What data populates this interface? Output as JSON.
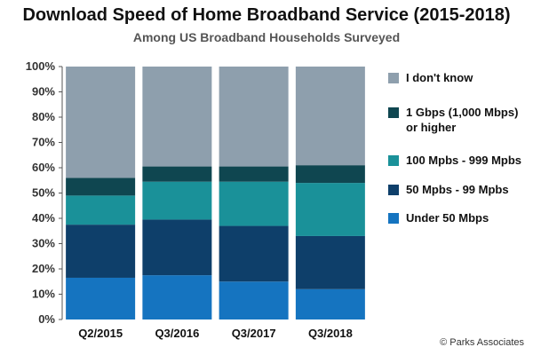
{
  "title": "Download Speed of Home Broadband Service (2015-2018)",
  "subtitle": "Among US Broadband Households Surveyed",
  "credit": "© Parks Associates",
  "chart_data": {
    "type": "bar",
    "stacked": true,
    "categories": [
      "Q2/2015",
      "Q3/2016",
      "Q3/2017",
      "Q3/2018"
    ],
    "series": [
      {
        "name": "Under 50 Mbps",
        "color": "#1574c0",
        "values": [
          16.5,
          17.5,
          15,
          12
        ]
      },
      {
        "name": "50 Mpbs - 99 Mpbs",
        "color": "#0e3f6a",
        "values": [
          21,
          22,
          22,
          21
        ]
      },
      {
        "name": "100 Mpbs - 999 Mpbs",
        "color": "#1a9199",
        "values": [
          11.5,
          15,
          17.5,
          21
        ]
      },
      {
        "name": "1 Gbps (1,000 Mbps) or higher",
        "color": "#0f4650",
        "values": [
          7,
          6,
          6,
          7
        ]
      },
      {
        "name": "I don't know",
        "color": "#8e9fad",
        "values": [
          44,
          39.5,
          39.5,
          39
        ]
      }
    ],
    "yticks": [
      "0%",
      "10%",
      "20%",
      "30%",
      "40%",
      "50%",
      "60%",
      "70%",
      "80%",
      "90%",
      "100%"
    ],
    "ylim": [
      0,
      100
    ],
    "grid": false,
    "legend": "right"
  }
}
